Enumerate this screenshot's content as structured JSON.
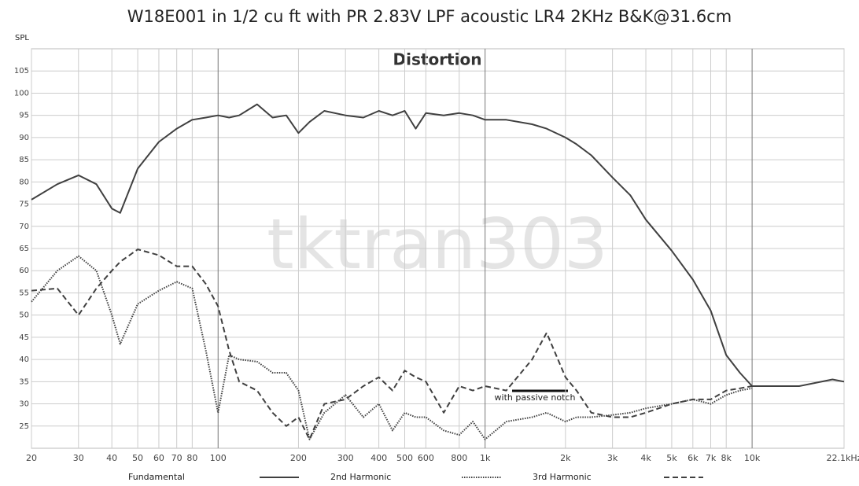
{
  "chart_data": {
    "type": "line",
    "title": "W18E001 in 1/2 cu ft with PR 2.83V LPF acoustic LR4 2KHz B&K@31.6cm",
    "y_label": "SPL",
    "annotations": [
      "Distortion",
      "with passive notch",
      "tktran303"
    ],
    "log_x": true,
    "grid": true,
    "legend": "bottom",
    "xlim": [
      20,
      22100
    ],
    "ylim": [
      20,
      110
    ],
    "xticks": [
      20,
      30,
      40,
      50,
      60,
      70,
      80,
      100,
      200,
      300,
      400,
      500,
      600,
      800,
      {
        "value": 1000,
        "label": "1k"
      },
      {
        "value": 2000,
        "label": "2k"
      },
      {
        "value": 3000,
        "label": "3k"
      },
      {
        "value": 4000,
        "label": "4k"
      },
      {
        "value": 5000,
        "label": "5k"
      },
      {
        "value": 6000,
        "label": "6k"
      },
      {
        "value": 7000,
        "label": "7k"
      },
      {
        "value": 8000,
        "label": "8k"
      },
      {
        "value": 10000,
        "label": "10k"
      },
      {
        "value": 22100,
        "label": "22.1kHz"
      }
    ],
    "yticks": [
      25,
      30,
      35,
      40,
      45,
      50,
      55,
      60,
      65,
      70,
      75,
      80,
      85,
      90,
      95,
      100,
      105
    ],
    "x": [
      20,
      25,
      30,
      35,
      40,
      43,
      50,
      60,
      70,
      80,
      90,
      100,
      110,
      120,
      140,
      160,
      180,
      200,
      220,
      250,
      300,
      350,
      400,
      450,
      500,
      550,
      600,
      700,
      800,
      900,
      1000,
      1200,
      1500,
      1700,
      2000,
      2200,
      2500,
      3000,
      3500,
      4000,
      5000,
      6000,
      7000,
      8000,
      9000,
      10000,
      15000,
      20000,
      22100
    ],
    "series": [
      {
        "name": "Fundamental",
        "color": "#404040",
        "style": "solid",
        "values": [
          76,
          79.5,
          81.5,
          79.5,
          74,
          73,
          83,
          89,
          92,
          94,
          94.5,
          95,
          94.5,
          95,
          97.5,
          94.5,
          95,
          91,
          93.5,
          96,
          95,
          94.5,
          96,
          95,
          96,
          92,
          95.5,
          95,
          95.5,
          95,
          94,
          94,
          93,
          92,
          90,
          88.5,
          86,
          81,
          77,
          71.5,
          64.5,
          58,
          51,
          41,
          37,
          34,
          34,
          35.5,
          35
        ]
      },
      {
        "name": "2nd Harmonic",
        "color": "#404040",
        "style": "dotted",
        "values": [
          53,
          60,
          63.3,
          60,
          50,
          43.5,
          52.5,
          55.5,
          57.5,
          56,
          42,
          28,
          41,
          40,
          39.5,
          37,
          37,
          33,
          22,
          28,
          32,
          27,
          30,
          24,
          28,
          27,
          27,
          24,
          23,
          26,
          22,
          26,
          27,
          28,
          26,
          27,
          27,
          27.5,
          28,
          29,
          30,
          31,
          30,
          32,
          33,
          33.5,
          null,
          null,
          null
        ]
      },
      {
        "name": "3rd Harmonic",
        "color": "#404040",
        "style": "dashed",
        "values": [
          55.5,
          56,
          50,
          56,
          60,
          62,
          64.8,
          63.5,
          61,
          61,
          57,
          52,
          42,
          35,
          33,
          28,
          25,
          27,
          22,
          30,
          31,
          34,
          36,
          33,
          37.5,
          36,
          35,
          28,
          34,
          33,
          34,
          33,
          40,
          46,
          36,
          33,
          28,
          27,
          27,
          28,
          30,
          31,
          31,
          33,
          33.5,
          34,
          null,
          null,
          null
        ]
      }
    ]
  }
}
